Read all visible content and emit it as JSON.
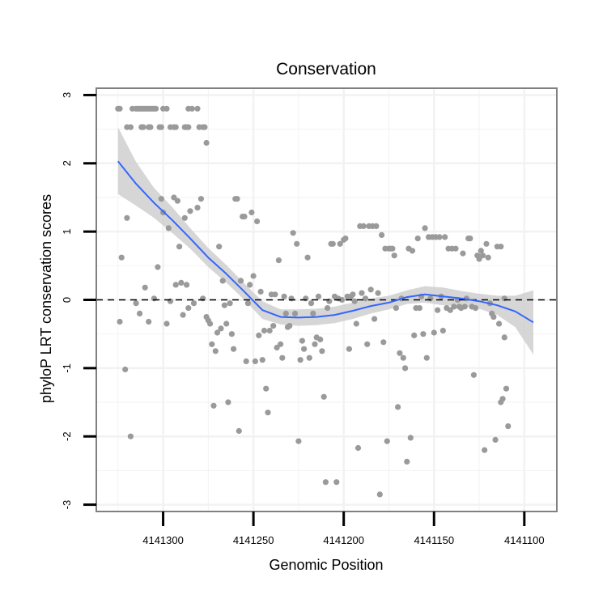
{
  "chart_data": {
    "type": "scatter",
    "title": "Conservation",
    "xlabel": "Genomic Position",
    "ylabel": "phyloP LRT conservation scores",
    "xlim": [
      4141337,
      4141082
    ],
    "x_reversed": true,
    "ylim": [
      -3.1,
      3.1
    ],
    "x_ticks": [
      4141300,
      4141250,
      4141200,
      4141150,
      4141100
    ],
    "x_tick_labels": [
      "4141300",
      "4141250",
      "4141200",
      "4141150",
      "4141100"
    ],
    "y_ticks": [
      -3,
      -2,
      -1,
      0,
      1,
      2,
      3
    ],
    "y_tick_labels": [
      "-3",
      "-2",
      "-1",
      "0",
      "1",
      "2",
      "3"
    ],
    "reference_line": {
      "y": 0,
      "style": "dashed"
    },
    "grid": true,
    "colors": {
      "points": "#9a9a9a",
      "smooth_line": "#3366ff",
      "confidence_band": "#cccccc",
      "grid": "#f2f2f2",
      "frame": "#808080"
    },
    "series": [
      {
        "name": "phyloP scores",
        "points": [
          [
            4141325,
            2.8
          ],
          [
            4141324,
            2.8
          ],
          [
            4141320,
            2.53
          ],
          [
            4141318,
            2.53
          ],
          [
            4141317,
            2.8
          ],
          [
            4141315,
            2.8
          ],
          [
            4141314,
            2.8
          ],
          [
            4141313,
            2.8
          ],
          [
            4141312,
            2.8
          ],
          [
            4141311,
            2.8
          ],
          [
            4141310,
            2.8
          ],
          [
            4141309,
            2.8
          ],
          [
            4141308,
            2.8
          ],
          [
            4141307,
            2.8
          ],
          [
            4141306,
            2.8
          ],
          [
            4141305,
            2.8
          ],
          [
            4141304,
            2.8
          ],
          [
            4141312,
            2.53
          ],
          [
            4141311,
            2.53
          ],
          [
            4141308,
            2.53
          ],
          [
            4141307,
            2.53
          ],
          [
            4141302,
            2.53
          ],
          [
            4141301,
            2.53
          ],
          [
            4141300,
            2.8
          ],
          [
            4141298,
            2.8
          ],
          [
            4141296,
            2.53
          ],
          [
            4141294,
            2.53
          ],
          [
            4141293,
            2.53
          ],
          [
            4141286,
            2.8
          ],
          [
            4141284,
            2.8
          ],
          [
            4141281,
            2.8
          ],
          [
            4141288,
            2.53
          ],
          [
            4141287,
            2.53
          ],
          [
            4141286,
            2.53
          ],
          [
            4141280,
            2.53
          ],
          [
            4141278,
            2.53
          ],
          [
            4141277,
            2.53
          ],
          [
            4141276,
            2.3
          ],
          [
            4141324,
            -0.32
          ],
          [
            4141323,
            0.62
          ],
          [
            4141321,
            -1.02
          ],
          [
            4141320,
            1.2
          ],
          [
            4141318,
            -2.0
          ],
          [
            4141315,
            -0.05
          ],
          [
            4141313,
            -0.2
          ],
          [
            4141310,
            0.18
          ],
          [
            4141308,
            -0.32
          ],
          [
            4141305,
            0.02
          ],
          [
            4141303,
            0.48
          ],
          [
            4141301,
            1.48
          ],
          [
            4141300,
            1.28
          ],
          [
            4141298,
            -0.35
          ],
          [
            4141297,
            1.05
          ],
          [
            4141296,
            -0.02
          ],
          [
            4141294,
            1.5
          ],
          [
            4141293,
            0.22
          ],
          [
            4141292,
            1.45
          ],
          [
            4141291,
            0.78
          ],
          [
            4141290,
            0.25
          ],
          [
            4141289,
            -0.22
          ],
          [
            4141288,
            1.2
          ],
          [
            4141287,
            0.22
          ],
          [
            4141286,
            -0.12
          ],
          [
            4141285,
            1.3
          ],
          [
            4141283,
            -0.05
          ],
          [
            4141281,
            1.35
          ],
          [
            4141279,
            1.48
          ],
          [
            4141278,
            0.02
          ],
          [
            4141276,
            -0.25
          ],
          [
            4141275,
            -0.3
          ],
          [
            4141274,
            -0.35
          ],
          [
            4141273,
            -0.65
          ],
          [
            4141272,
            -1.55
          ],
          [
            4141271,
            -0.75
          ],
          [
            4141270,
            -0.48
          ],
          [
            4141269,
            0.78
          ],
          [
            4141268,
            -0.42
          ],
          [
            4141267,
            0.28
          ],
          [
            4141266,
            -0.08
          ],
          [
            4141265,
            -0.35
          ],
          [
            4141264,
            -1.5
          ],
          [
            4141263,
            -0.05
          ],
          [
            4141262,
            -0.5
          ],
          [
            4141261,
            -0.72
          ],
          [
            4141260,
            1.48
          ],
          [
            4141259,
            1.48
          ],
          [
            4141258,
            -1.92
          ],
          [
            4141257,
            0.28
          ],
          [
            4141256,
            1.22
          ],
          [
            4141255,
            1.22
          ],
          [
            4141254,
            -0.9
          ],
          [
            4141253,
            -0.05
          ],
          [
            4141252,
            0.22
          ],
          [
            4141251,
            1.28
          ],
          [
            4141250,
            0.35
          ],
          [
            4141249,
            -0.9
          ],
          [
            4141248,
            1.15
          ],
          [
            4141247,
            -0.52
          ],
          [
            4141246,
            0.12
          ],
          [
            4141245,
            -0.88
          ],
          [
            4141244,
            -0.45
          ],
          [
            4141243,
            -1.3
          ],
          [
            4141242,
            -1.65
          ],
          [
            4141241,
            -0.45
          ],
          [
            4141240,
            0.08
          ],
          [
            4141239,
            -0.38
          ],
          [
            4141238,
            0.08
          ],
          [
            4141237,
            -0.7
          ],
          [
            4141236,
            0.58
          ],
          [
            4141235,
            -0.65
          ],
          [
            4141234,
            -0.85
          ],
          [
            4141233,
            0.05
          ],
          [
            4141232,
            -0.2
          ],
          [
            4141231,
            -0.4
          ],
          [
            4141230,
            -0.38
          ],
          [
            4141229,
            0.02
          ],
          [
            4141228,
            0.98
          ],
          [
            4141227,
            -0.2
          ],
          [
            4141226,
            0.82
          ],
          [
            4141225,
            -2.07
          ],
          [
            4141224,
            -0.88
          ],
          [
            4141223,
            -0.6
          ],
          [
            4141222,
            -0.72
          ],
          [
            4141221,
            0.02
          ],
          [
            4141220,
            0.62
          ],
          [
            4141219,
            -0.85
          ],
          [
            4141218,
            -0.05
          ],
          [
            4141217,
            -0.2
          ],
          [
            4141216,
            -0.65
          ],
          [
            4141215,
            -0.55
          ],
          [
            4141214,
            0.05
          ],
          [
            4141213,
            -0.58
          ],
          [
            4141212,
            -0.75
          ],
          [
            4141211,
            -1.42
          ],
          [
            4141210,
            -2.67
          ],
          [
            4141209,
            -0.12
          ],
          [
            4141208,
            -0.02
          ],
          [
            4141207,
            0.82
          ],
          [
            4141206,
            0.82
          ],
          [
            4141205,
            0.05
          ],
          [
            4141204,
            -2.67
          ],
          [
            4141203,
            0.02
          ],
          [
            4141202,
            0.82
          ],
          [
            4141201,
            0.0
          ],
          [
            4141200,
            0.88
          ],
          [
            4141199,
            0.9
          ],
          [
            4141198,
            0.05
          ],
          [
            4141197,
            -0.72
          ],
          [
            4141196,
            0.05
          ],
          [
            4141195,
            0.08
          ],
          [
            4141194,
            -0.02
          ],
          [
            4141193,
            -0.35
          ],
          [
            4141192,
            -2.17
          ],
          [
            4141191,
            1.08
          ],
          [
            4141190,
            0.1
          ],
          [
            4141189,
            1.08
          ],
          [
            4141188,
            0.02
          ],
          [
            4141187,
            -0.65
          ],
          [
            4141186,
            1.08
          ],
          [
            4141185,
            0.15
          ],
          [
            4141184,
            1.08
          ],
          [
            4141183,
            -0.28
          ],
          [
            4141182,
            1.08
          ],
          [
            4141181,
            0.1
          ],
          [
            4141180,
            -2.85
          ],
          [
            4141179,
            0.95
          ],
          [
            4141178,
            -0.62
          ],
          [
            4141177,
            0.75
          ],
          [
            4141176,
            -2.07
          ],
          [
            4141175,
            0.75
          ],
          [
            4141174,
            0.75
          ],
          [
            4141173,
            0.75
          ],
          [
            4141172,
            0.65
          ],
          [
            4141171,
            -0.12
          ],
          [
            4141170,
            -1.57
          ],
          [
            4141169,
            -0.78
          ],
          [
            4141168,
            0.02
          ],
          [
            4141167,
            -0.85
          ],
          [
            4141166,
            -1.0
          ],
          [
            4141165,
            -2.37
          ],
          [
            4141164,
            0.75
          ],
          [
            4141163,
            -2.02
          ],
          [
            4141162,
            0.72
          ],
          [
            4141161,
            -0.52
          ],
          [
            4141160,
            -0.12
          ],
          [
            4141159,
            0.9
          ],
          [
            4141158,
            -0.12
          ],
          [
            4141157,
            0.05
          ],
          [
            4141156,
            -0.5
          ],
          [
            4141155,
            1.05
          ],
          [
            4141154,
            -0.85
          ],
          [
            4141153,
            0.92
          ],
          [
            4141152,
            0.02
          ],
          [
            4141151,
            0.92
          ],
          [
            4141150,
            -0.48
          ],
          [
            4141149,
            0.92
          ],
          [
            4141148,
            -0.15
          ],
          [
            4141147,
            0.92
          ],
          [
            4141146,
            0.05
          ],
          [
            4141145,
            -0.45
          ],
          [
            4141144,
            0.92
          ],
          [
            4141143,
            -0.12
          ],
          [
            4141142,
            0.75
          ],
          [
            4141141,
            -0.15
          ],
          [
            4141140,
            0.75
          ],
          [
            4141139,
            -0.1
          ],
          [
            4141138,
            0.75
          ],
          [
            4141137,
            0.0
          ],
          [
            4141136,
            -0.1
          ],
          [
            4141135,
            -0.12
          ],
          [
            4141134,
            0.68
          ],
          [
            4141133,
            -0.1
          ],
          [
            4141132,
            0.02
          ],
          [
            4141131,
            0.9
          ],
          [
            4141130,
            0.9
          ],
          [
            4141129,
            -0.1
          ],
          [
            4141128,
            -1.1
          ],
          [
            4141127,
            -0.12
          ],
          [
            4141126,
            0.65
          ],
          [
            4141125,
            0.6
          ],
          [
            4141124,
            0.72
          ],
          [
            4141123,
            0.65
          ],
          [
            4141122,
            -2.2
          ],
          [
            4141121,
            0.82
          ],
          [
            4141120,
            0.62
          ],
          [
            4141119,
            -0.05
          ],
          [
            4141118,
            -0.2
          ],
          [
            4141117,
            -0.25
          ],
          [
            4141116,
            -2.05
          ],
          [
            4141115,
            0.78
          ],
          [
            4141114,
            -0.35
          ],
          [
            4141113,
            -1.5
          ],
          [
            4141112,
            -1.45
          ],
          [
            4141111,
            -0.55
          ],
          [
            4141110,
            -1.3
          ],
          [
            4141109,
            -1.85
          ],
          [
            4141111,
            0.02
          ],
          [
            4141113,
            0.78
          ]
        ]
      }
    ],
    "smooth": {
      "method": "loess",
      "x": [
        4141325,
        4141315,
        4141305,
        4141295,
        4141285,
        4141275,
        4141265,
        4141255,
        4141245,
        4141235,
        4141225,
        4141215,
        4141205,
        4141195,
        4141185,
        4141175,
        4141165,
        4141155,
        4141145,
        4141135,
        4141125,
        4141115,
        4141105,
        4141095
      ],
      "y": [
        2.03,
        1.7,
        1.42,
        1.17,
        0.9,
        0.62,
        0.38,
        0.12,
        -0.15,
        -0.25,
        -0.26,
        -0.25,
        -0.22,
        -0.16,
        -0.09,
        -0.04,
        0.04,
        0.08,
        0.05,
        0.02,
        -0.02,
        -0.08,
        -0.17,
        -0.33
      ],
      "lower": [
        1.55,
        1.38,
        1.2,
        0.98,
        0.75,
        0.48,
        0.25,
        0.0,
        -0.28,
        -0.36,
        -0.38,
        -0.37,
        -0.34,
        -0.28,
        -0.2,
        -0.14,
        -0.06,
        -0.04,
        -0.08,
        -0.09,
        -0.13,
        -0.22,
        -0.4,
        -0.8
      ],
      "upper": [
        2.53,
        2.02,
        1.64,
        1.36,
        1.05,
        0.76,
        0.51,
        0.24,
        -0.02,
        -0.14,
        -0.14,
        -0.13,
        -0.1,
        -0.04,
        0.02,
        0.06,
        0.14,
        0.2,
        0.18,
        0.13,
        0.09,
        0.06,
        0.06,
        0.14
      ]
    }
  }
}
